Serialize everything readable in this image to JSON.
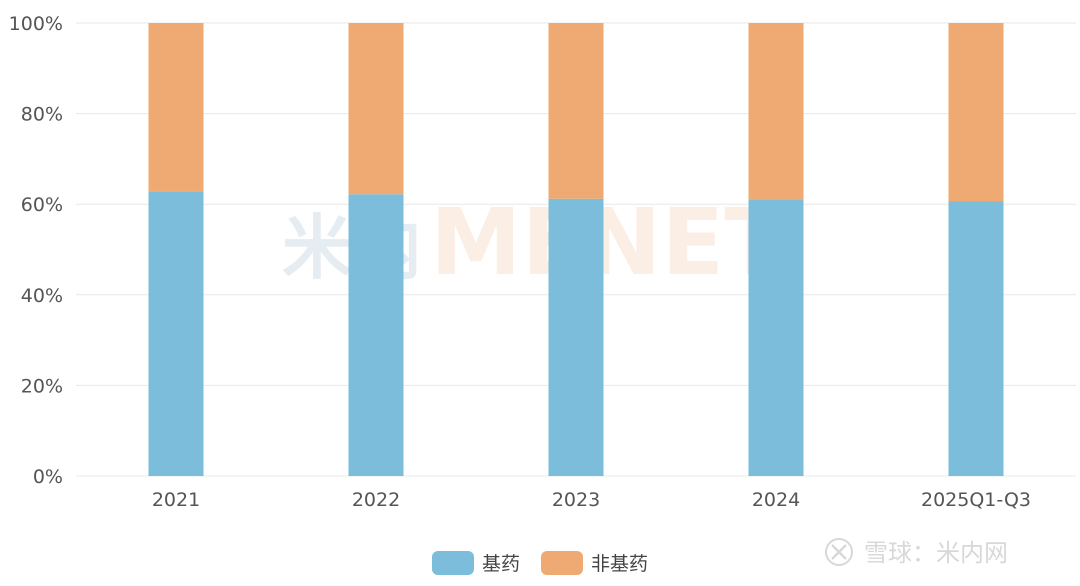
{
  "chart_data": {
    "type": "bar",
    "stacked": true,
    "percent_stacked": true,
    "categories": [
      "2021",
      "2022",
      "2023",
      "2024",
      "2025Q1-Q3"
    ],
    "series": [
      {
        "name": "基药",
        "values": [
          62.7,
          62.2,
          61.2,
          61.1,
          60.6
        ]
      },
      {
        "name": "非基药",
        "values": [
          37.3,
          37.8,
          38.8,
          38.9,
          39.4
        ]
      }
    ],
    "ylim": [
      0,
      100
    ],
    "yticks": [
      "0%",
      "20%",
      "40%",
      "60%",
      "80%",
      "100%"
    ],
    "grid": true,
    "legend_position": "bottom-center",
    "colors": {
      "基药": "#7bbddb",
      "非基药": "#eeaa72",
      "grid": "#e8e8e8"
    }
  },
  "watermark": {
    "logo": "米内",
    "text": "MENET"
  },
  "credit": {
    "text": "雪球：米内网"
  }
}
